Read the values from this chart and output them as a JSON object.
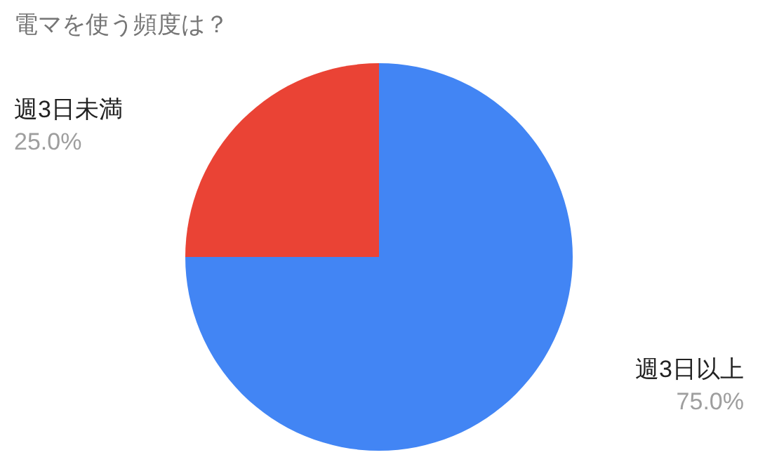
{
  "chart_data": {
    "type": "pie",
    "title": "電マを使う頻度は？",
    "categories": [
      "週3日以上",
      "週3日未満"
    ],
    "values": [
      75,
      25
    ],
    "colors": [
      "#4285f4",
      "#ea4335"
    ],
    "value_labels": [
      "75.0%",
      "25.0%"
    ]
  }
}
